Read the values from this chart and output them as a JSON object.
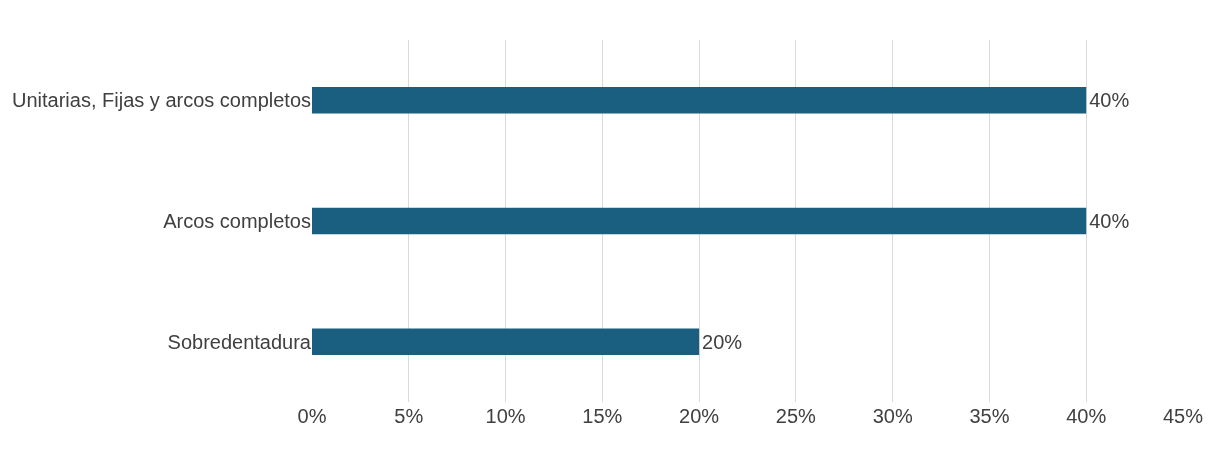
{
  "chart_data": {
    "type": "bar",
    "orientation": "horizontal",
    "categories": [
      "Unitarias, Fijas y arcos completos",
      "Arcos completos",
      "Sobredentadura"
    ],
    "values": [
      40,
      40,
      20
    ],
    "value_labels": [
      "40%",
      "40%",
      "20%"
    ],
    "color": "#1a5f80",
    "xlim": [
      0,
      45
    ],
    "xticks": [
      {
        "value": 0,
        "label": "0%"
      },
      {
        "value": 5,
        "label": "5%"
      },
      {
        "value": 10,
        "label": "10%"
      },
      {
        "value": 15,
        "label": "15%"
      },
      {
        "value": 20,
        "label": "20%"
      },
      {
        "value": 25,
        "label": "25%"
      },
      {
        "value": 30,
        "label": "30%"
      },
      {
        "value": 35,
        "label": "35%"
      },
      {
        "value": 40,
        "label": "40%"
      },
      {
        "value": 45,
        "label": "45%"
      }
    ],
    "grid": "x"
  }
}
